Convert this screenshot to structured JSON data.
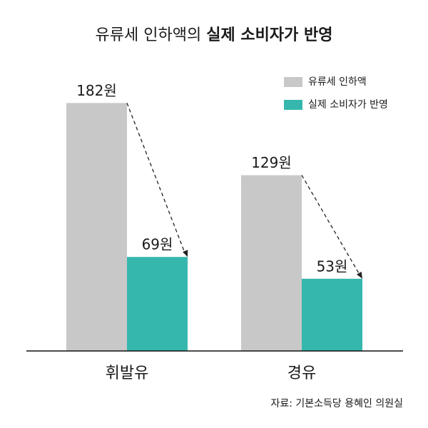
{
  "chart_data": {
    "type": "bar",
    "title": "유류세 인하액의",
    "title_bold": "실제 소비자가 반영",
    "categories": [
      "휘발유",
      "경유"
    ],
    "series": [
      {
        "name": "유류세 인하액",
        "color": "#c8c8c8",
        "values": [
          182,
          129
        ],
        "value_labels": [
          "182원",
          "129원"
        ]
      },
      {
        "name": "실제 소비자가 반영",
        "color": "#36b7ad",
        "values": [
          69,
          53
        ],
        "value_labels": [
          "69원",
          "53원"
        ]
      }
    ],
    "ylim": [
      0,
      200
    ],
    "legend": "upper right",
    "source": "자료: 기본소득당 용혜인 의원실"
  }
}
